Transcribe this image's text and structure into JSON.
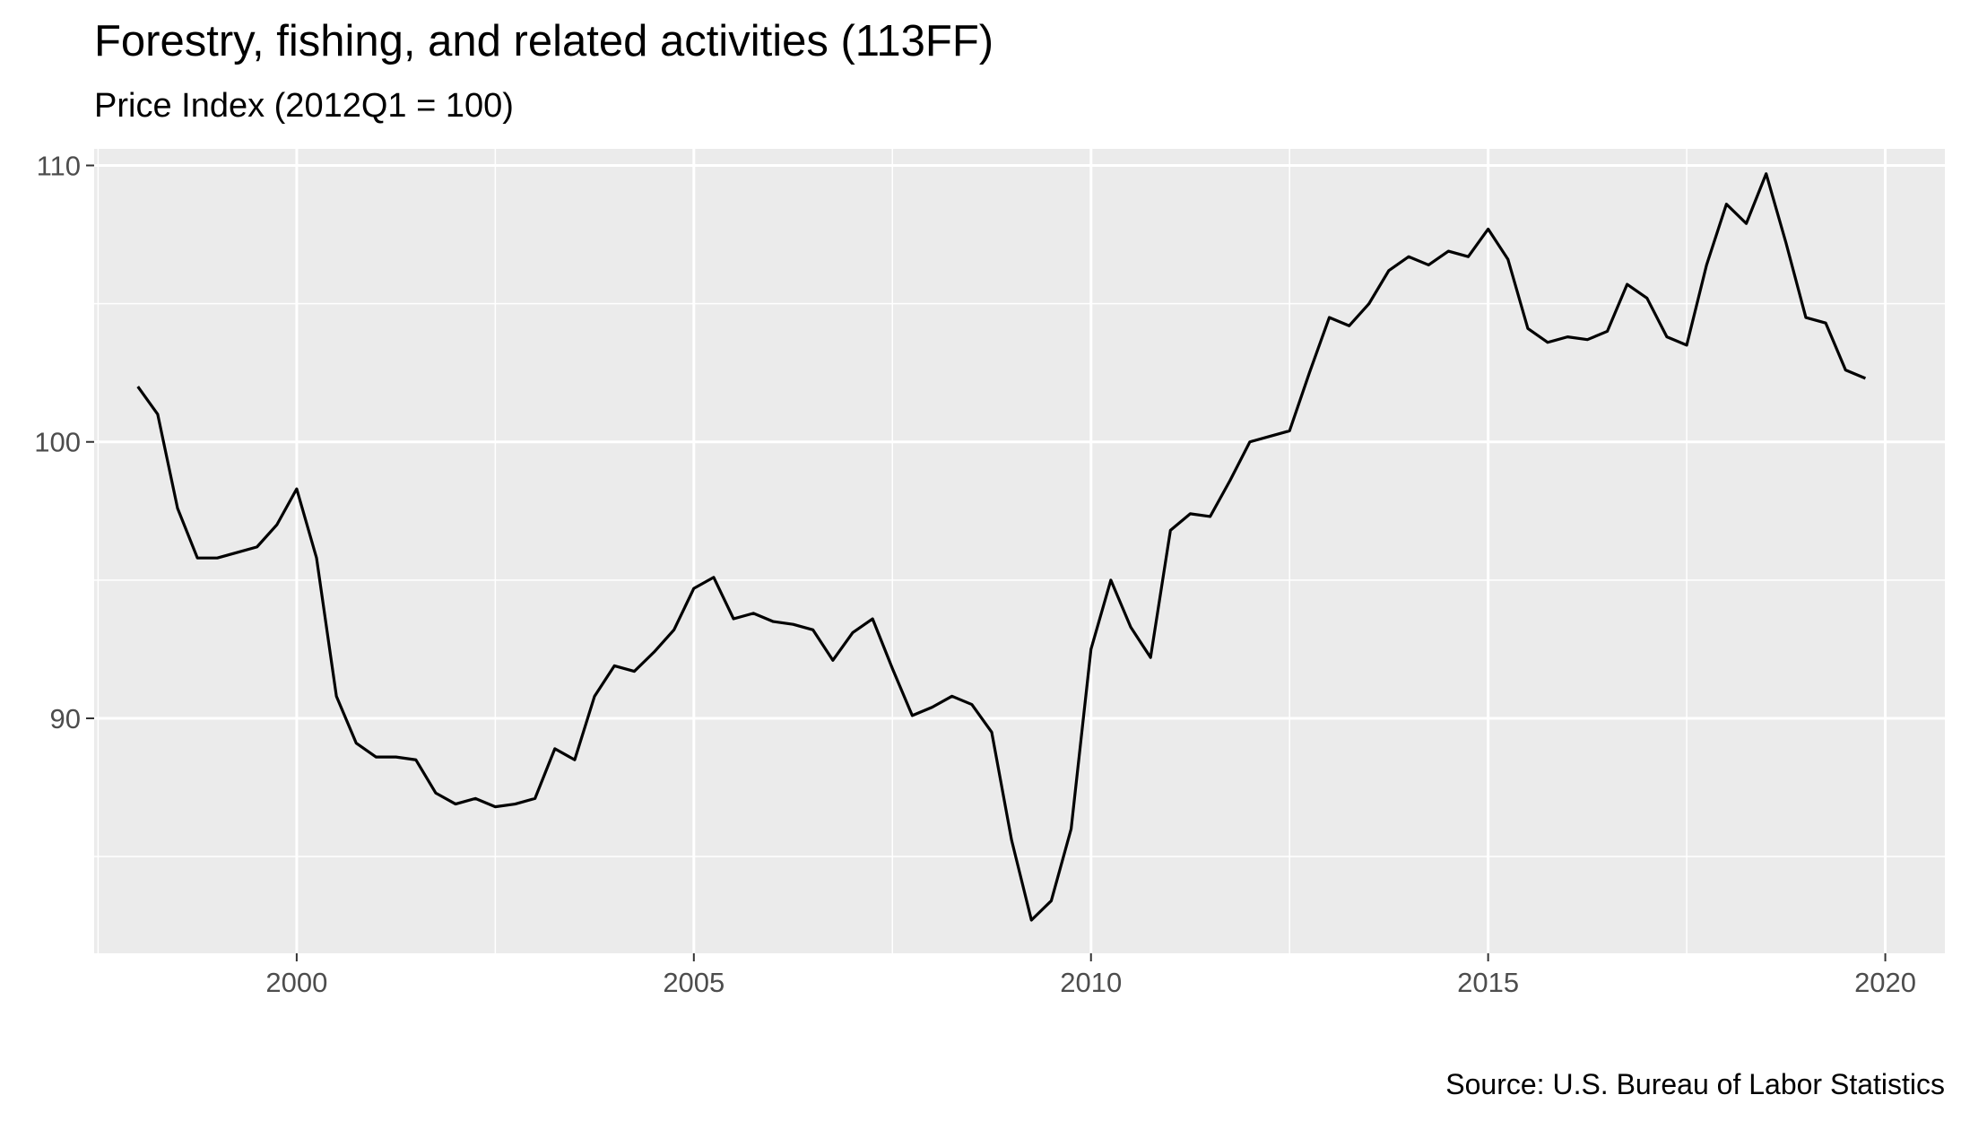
{
  "chart_data": {
    "type": "line",
    "title": "Forestry, fishing, and related activities (113FF)",
    "subtitle": "Price Index (2012Q1 = 100)",
    "caption": "Source: U.S. Bureau of Labor Statistics",
    "xlabel": "",
    "ylabel": "",
    "x_ticks": [
      2000,
      2005,
      2010,
      2015,
      2020
    ],
    "y_ticks": [
      90,
      100,
      110
    ],
    "xlim": [
      1997.45,
      2020.75
    ],
    "ylim": [
      81.5,
      110.6
    ],
    "grid": true,
    "legend": "none",
    "line_color": "#000000",
    "panel_color": "#ebebeb",
    "series": [
      {
        "x": [
          1998.0,
          1998.25,
          1998.5,
          1998.75,
          1999.0,
          1999.25,
          1999.5,
          1999.75,
          2000.0,
          2000.25,
          2000.5,
          2000.75,
          2001.0,
          2001.25,
          2001.5,
          2001.75,
          2002.0,
          2002.25,
          2002.5,
          2002.75,
          2003.0,
          2003.25,
          2003.5,
          2003.75,
          2004.0,
          2004.25,
          2004.5,
          2004.75,
          2005.0,
          2005.25,
          2005.5,
          2005.75,
          2006.0,
          2006.25,
          2006.5,
          2006.75,
          2007.0,
          2007.25,
          2007.5,
          2007.75,
          2008.0,
          2008.25,
          2008.5,
          2008.75,
          2009.0,
          2009.25,
          2009.5,
          2009.75,
          2010.0,
          2010.25,
          2010.5,
          2010.75,
          2011.0,
          2011.25,
          2011.5,
          2011.75,
          2012.0,
          2012.25,
          2012.5,
          2012.75,
          2013.0,
          2013.25,
          2013.5,
          2013.75,
          2014.0,
          2014.25,
          2014.5,
          2014.75,
          2015.0,
          2015.25,
          2015.5,
          2015.75,
          2016.0,
          2016.25,
          2016.5,
          2016.75,
          2017.0,
          2017.25,
          2017.5,
          2017.75,
          2018.0,
          2018.25,
          2018.5,
          2018.75,
          2019.0,
          2019.25,
          2019.5,
          2019.75
        ],
        "values": [
          102.0,
          101.0,
          97.6,
          95.8,
          95.8,
          96.0,
          96.2,
          97.0,
          98.3,
          95.8,
          90.8,
          89.1,
          88.6,
          88.6,
          88.5,
          87.3,
          86.9,
          87.1,
          86.8,
          86.9,
          87.1,
          88.9,
          88.5,
          90.8,
          91.9,
          91.7,
          92.4,
          93.2,
          94.7,
          95.1,
          93.6,
          93.8,
          93.5,
          93.4,
          93.2,
          92.1,
          93.1,
          93.6,
          91.8,
          90.1,
          90.4,
          90.8,
          90.5,
          89.5,
          85.6,
          82.7,
          83.4,
          86.0,
          92.5,
          95.0,
          93.3,
          92.2,
          96.8,
          97.4,
          97.3,
          98.6,
          100.0,
          100.2,
          100.4,
          102.5,
          104.5,
          104.2,
          105.0,
          106.2,
          106.7,
          106.4,
          106.9,
          106.7,
          107.7,
          106.6,
          104.1,
          103.6,
          103.8,
          103.7,
          104.0,
          105.7,
          105.2,
          103.8,
          103.5,
          106.4,
          108.6,
          107.9,
          109.7,
          107.2,
          104.5,
          104.3,
          102.6,
          102.3
        ]
      }
    ]
  }
}
